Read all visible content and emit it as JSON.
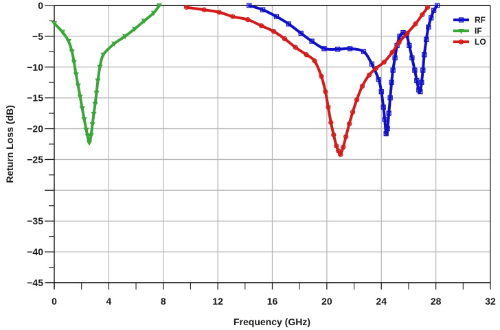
{
  "chart_data": {
    "type": "line",
    "title": "",
    "xlabel": "Frequency (GHz)",
    "ylabel": "Return Loss (dB)",
    "xlim": [
      0,
      32
    ],
    "ylim": [
      -45,
      0
    ],
    "x_ticks": [
      0,
      4,
      8,
      12,
      16,
      20,
      24,
      28,
      32
    ],
    "x_tick_labels": [
      "0",
      "4",
      "8",
      "12",
      "16",
      "20",
      "24",
      "28",
      "32"
    ],
    "y_tick_positions": [
      0,
      -5,
      -10,
      -15,
      -20,
      -25,
      -30,
      -35,
      -40,
      -45
    ],
    "y_tick_labels": [
      "0",
      "−5",
      "−10",
      "−15",
      "−20",
      "−25",
      "",
      "−35",
      "−40",
      "−45"
    ],
    "y_minor_ticks": [
      -2.5,
      -7.5,
      -12.5,
      -17.5,
      -22.5,
      -27.5,
      -32.5,
      -37.5,
      -42.5
    ],
    "x_minor_ticks": [
      2,
      6,
      10,
      14,
      18,
      22,
      26,
      30
    ],
    "grid": true,
    "legend_position": "upper right",
    "series": [
      {
        "name": "RF",
        "color": "#1010c8",
        "marker": "square",
        "x": [
          14.3,
          15.3,
          16.3,
          17.2,
          18.1,
          18.9,
          19.8,
          20.8,
          21.7,
          22.7,
          23.3,
          23.8,
          24.0,
          24.15,
          24.25,
          24.35,
          24.45,
          24.55,
          24.65,
          24.75,
          24.85,
          25.0,
          25.15,
          25.35,
          25.6,
          25.85,
          26.05,
          26.25,
          26.45,
          26.6,
          26.75,
          26.85,
          26.95,
          27.05,
          27.15,
          27.3,
          27.45,
          27.65,
          27.85,
          28.1
        ],
        "y": [
          0.0,
          -0.7,
          -1.8,
          -3.0,
          -4.5,
          -5.8,
          -7.0,
          -7.1,
          -7.0,
          -7.5,
          -9.5,
          -12.0,
          -14.0,
          -16.5,
          -18.5,
          -20.8,
          -20.0,
          -17.5,
          -15.0,
          -12.5,
          -10.5,
          -8.5,
          -6.5,
          -5.0,
          -4.4,
          -4.8,
          -6.5,
          -8.5,
          -10.5,
          -12.2,
          -13.7,
          -14.0,
          -12.5,
          -10.5,
          -8.0,
          -5.5,
          -3.5,
          -2.0,
          -0.8,
          0.0
        ]
      },
      {
        "name": "IF",
        "color": "#3aa63a",
        "marker": "triangle-down",
        "x": [
          0.0,
          0.6,
          1.05,
          1.3,
          1.45,
          1.6,
          1.75,
          1.9,
          2.05,
          2.2,
          2.35,
          2.45,
          2.57,
          2.7,
          2.8,
          2.9,
          3.0,
          3.1,
          3.2,
          3.35,
          3.6,
          4.4,
          5.2,
          5.9,
          6.6,
          7.3,
          7.7
        ],
        "y": [
          -2.9,
          -4.3,
          -5.8,
          -7.5,
          -9.2,
          -11.2,
          -13.0,
          -14.8,
          -16.7,
          -18.5,
          -20.2,
          -21.2,
          -22.3,
          -21.1,
          -19.3,
          -17.6,
          -16.0,
          -14.2,
          -12.2,
          -10.0,
          -8.0,
          -6.2,
          -5.0,
          -3.8,
          -2.5,
          -1.2,
          0.0
        ]
      },
      {
        "name": "LO",
        "color": "#d41a1a",
        "marker": "circle",
        "x": [
          9.7,
          11.0,
          12.1,
          13.1,
          14.2,
          15.2,
          16.1,
          16.9,
          17.7,
          18.5,
          19.1,
          19.6,
          19.9,
          20.1,
          20.3,
          20.5,
          20.7,
          20.85,
          21.0,
          21.2,
          21.4,
          21.65,
          21.9,
          22.2,
          22.6,
          23.1,
          23.6,
          24.2,
          24.8,
          25.3,
          25.9,
          26.5,
          27.0,
          27.4
        ],
        "y": [
          -0.3,
          -0.7,
          -1.1,
          -1.8,
          -2.3,
          -3.3,
          -4.2,
          -5.4,
          -6.8,
          -8.0,
          -9.0,
          -11.5,
          -14.0,
          -16.5,
          -19.0,
          -21.0,
          -22.8,
          -23.6,
          -24.2,
          -23.0,
          -21.3,
          -19.2,
          -17.3,
          -15.3,
          -13.1,
          -11.3,
          -10.2,
          -9.2,
          -7.6,
          -6.0,
          -4.5,
          -3.0,
          -1.5,
          -0.3
        ]
      }
    ]
  }
}
